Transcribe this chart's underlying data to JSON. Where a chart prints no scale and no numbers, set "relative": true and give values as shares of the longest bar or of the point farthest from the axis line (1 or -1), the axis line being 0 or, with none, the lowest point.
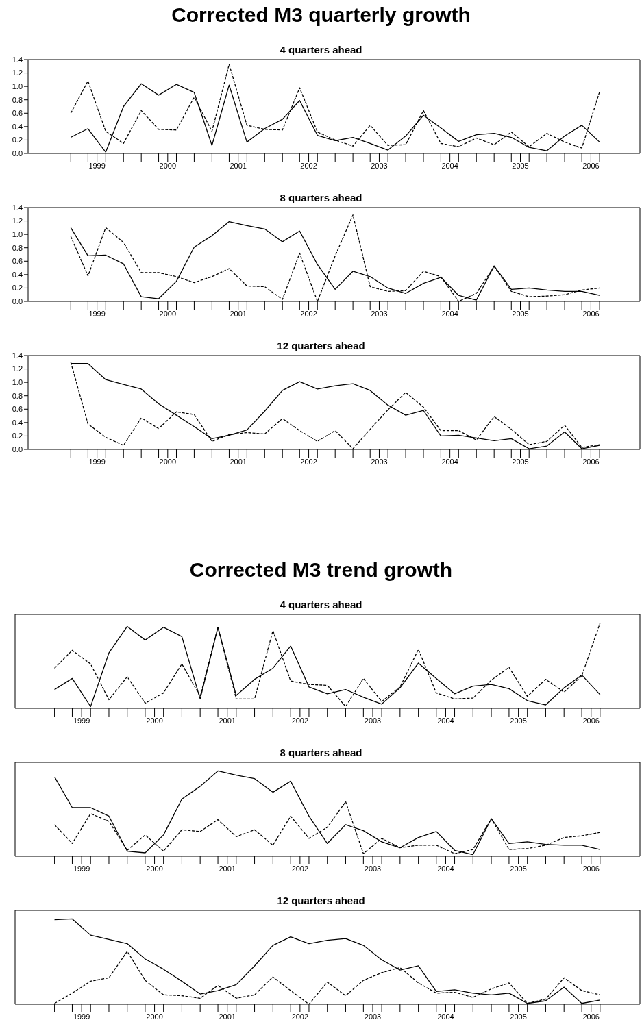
{
  "chart_data": [
    {
      "type": "line",
      "title": "Corrected M3 quarterly growth",
      "subtitle": "4 quarters ahead",
      "x": [
        "1999-02-15",
        "1999-05-15",
        "1999-08-15",
        "1999-11-15",
        "2000-02-15",
        "2000-05-15",
        "2000-08-15",
        "2000-11-15",
        "2001-02-15",
        "2001-05-15",
        "2001-08-15",
        "2001-11-15",
        "2002-02-15",
        "2002-05-15",
        "2002-08-15",
        "2002-11-15",
        "2003-02-15",
        "2003-05-15",
        "2003-08-15",
        "2003-11-15",
        "2004-02-15",
        "2004-05-15",
        "2004-08-15",
        "2004-11-15",
        "2005-02-15",
        "2005-05-15",
        "2005-08-15",
        "2005-11-15",
        "2006-02-15",
        "2006-05-15",
        "2006-08-15"
      ],
      "xlim": [
        "1998-07-09",
        "2007-03-12"
      ],
      "xticks": [
        {
          "value": "1999-02-15",
          "label": null
        },
        {
          "value": "1999-05-15",
          "label": null
        },
        {
          "value": "1999-07-01",
          "label": "1999"
        },
        {
          "value": "1999-08-15",
          "label": null
        },
        {
          "value": "1999-11-15",
          "label": null
        },
        {
          "value": "2000-02-15",
          "label": null
        },
        {
          "value": "2000-05-15",
          "label": null
        },
        {
          "value": "2000-07-01",
          "label": "2000"
        },
        {
          "value": "2000-08-15",
          "label": null
        },
        {
          "value": "2000-11-15",
          "label": null
        },
        {
          "value": "2001-02-15",
          "label": null
        },
        {
          "value": "2001-05-15",
          "label": null
        },
        {
          "value": "2001-07-01",
          "label": "2001"
        },
        {
          "value": "2001-08-15",
          "label": null
        },
        {
          "value": "2001-11-15",
          "label": null
        },
        {
          "value": "2002-02-15",
          "label": null
        },
        {
          "value": "2002-05-15",
          "label": null
        },
        {
          "value": "2002-07-01",
          "label": "2002"
        },
        {
          "value": "2002-08-15",
          "label": null
        },
        {
          "value": "2002-11-15",
          "label": null
        },
        {
          "value": "2003-02-15",
          "label": null
        },
        {
          "value": "2003-05-15",
          "label": null
        },
        {
          "value": "2003-07-01",
          "label": "2003"
        },
        {
          "value": "2003-08-15",
          "label": null
        },
        {
          "value": "2003-11-15",
          "label": null
        },
        {
          "value": "2004-02-15",
          "label": null
        },
        {
          "value": "2004-05-15",
          "label": null
        },
        {
          "value": "2004-07-01",
          "label": "2004"
        },
        {
          "value": "2004-08-15",
          "label": null
        },
        {
          "value": "2004-11-15",
          "label": null
        },
        {
          "value": "2005-02-15",
          "label": null
        },
        {
          "value": "2005-05-15",
          "label": null
        },
        {
          "value": "2005-07-01",
          "label": "2005"
        },
        {
          "value": "2005-08-15",
          "label": null
        },
        {
          "value": "2005-11-15",
          "label": null
        },
        {
          "value": "2006-02-15",
          "label": null
        },
        {
          "value": "2006-05-15",
          "label": null
        },
        {
          "value": "2006-07-01",
          "label": "2006"
        },
        {
          "value": "2006-08-15",
          "label": null
        }
      ],
      "ylim": [
        0,
        1.4
      ],
      "yticks": [
        {
          "value": 0,
          "label": "0.0"
        },
        {
          "value": 0.2,
          "label": "0.2"
        },
        {
          "value": 0.4,
          "label": "0.4"
        },
        {
          "value": 0.6,
          "label": "0.6"
        },
        {
          "value": 0.8,
          "label": "0.8"
        },
        {
          "value": 1,
          "label": "1.0"
        },
        {
          "value": 1.2,
          "label": "1.2"
        },
        {
          "value": 1.4,
          "label": "1.4"
        }
      ],
      "series": [
        {
          "color": "#000000",
          "line_style": "solid",
          "values": [
            0.24,
            0.37,
            0.02,
            0.7,
            1.04,
            0.87,
            1.03,
            0.91,
            0.12,
            1.02,
            0.17,
            0.37,
            0.51,
            0.79,
            0.27,
            0.19,
            0.24,
            0.15,
            0.05,
            0.26,
            0.57,
            0.38,
            0.18,
            0.28,
            0.3,
            0.24,
            0.09,
            0.04,
            0.26,
            0.42,
            0.17
          ]
        },
        {
          "color": "#000000",
          "line_style": "dashed",
          "values": [
            0.6,
            1.08,
            0.33,
            0.15,
            0.64,
            0.36,
            0.35,
            0.84,
            0.33,
            1.33,
            0.42,
            0.36,
            0.35,
            0.98,
            0.32,
            0.2,
            0.11,
            0.42,
            0.12,
            0.13,
            0.64,
            0.15,
            0.1,
            0.23,
            0.13,
            0.32,
            0.1,
            0.3,
            0.17,
            0.08,
            0.92
          ]
        }
      ]
    },
    {
      "type": "line",
      "title": "8 quarters ahead",
      "x": [
        "1999-02-15",
        "1999-05-15",
        "1999-08-15",
        "1999-11-15",
        "2000-02-15",
        "2000-05-15",
        "2000-08-15",
        "2000-11-15",
        "2001-02-15",
        "2001-05-15",
        "2001-08-15",
        "2001-11-15",
        "2002-02-15",
        "2002-05-15",
        "2002-08-15",
        "2002-11-15",
        "2003-02-15",
        "2003-05-15",
        "2003-08-15",
        "2003-11-15",
        "2004-02-15",
        "2004-05-15",
        "2004-08-15",
        "2004-11-15",
        "2005-02-15",
        "2005-05-15",
        "2005-08-15",
        "2005-11-15",
        "2006-02-15",
        "2006-05-15",
        "2006-08-15"
      ],
      "xlim": [
        "1998-07-09",
        "2007-03-12"
      ],
      "xticks": [
        {
          "value": "1999-02-15",
          "label": null
        },
        {
          "value": "1999-05-15",
          "label": null
        },
        {
          "value": "1999-07-01",
          "label": "1999"
        },
        {
          "value": "1999-08-15",
          "label": null
        },
        {
          "value": "1999-11-15",
          "label": null
        },
        {
          "value": "2000-02-15",
          "label": null
        },
        {
          "value": "2000-05-15",
          "label": null
        },
        {
          "value": "2000-07-01",
          "label": "2000"
        },
        {
          "value": "2000-08-15",
          "label": null
        },
        {
          "value": "2000-11-15",
          "label": null
        },
        {
          "value": "2001-02-15",
          "label": null
        },
        {
          "value": "2001-05-15",
          "label": null
        },
        {
          "value": "2001-07-01",
          "label": "2001"
        },
        {
          "value": "2001-08-15",
          "label": null
        },
        {
          "value": "2001-11-15",
          "label": null
        },
        {
          "value": "2002-02-15",
          "label": null
        },
        {
          "value": "2002-05-15",
          "label": null
        },
        {
          "value": "2002-07-01",
          "label": "2002"
        },
        {
          "value": "2002-08-15",
          "label": null
        },
        {
          "value": "2002-11-15",
          "label": null
        },
        {
          "value": "2003-02-15",
          "label": null
        },
        {
          "value": "2003-05-15",
          "label": null
        },
        {
          "value": "2003-07-01",
          "label": "2003"
        },
        {
          "value": "2003-08-15",
          "label": null
        },
        {
          "value": "2003-11-15",
          "label": null
        },
        {
          "value": "2004-02-15",
          "label": null
        },
        {
          "value": "2004-05-15",
          "label": null
        },
        {
          "value": "2004-07-01",
          "label": "2004"
        },
        {
          "value": "2004-08-15",
          "label": null
        },
        {
          "value": "2004-11-15",
          "label": null
        },
        {
          "value": "2005-02-15",
          "label": null
        },
        {
          "value": "2005-05-15",
          "label": null
        },
        {
          "value": "2005-07-01",
          "label": "2005"
        },
        {
          "value": "2005-08-15",
          "label": null
        },
        {
          "value": "2005-11-15",
          "label": null
        },
        {
          "value": "2006-02-15",
          "label": null
        },
        {
          "value": "2006-05-15",
          "label": null
        },
        {
          "value": "2006-07-01",
          "label": "2006"
        },
        {
          "value": "2006-08-15",
          "label": null
        }
      ],
      "ylim": [
        0,
        1.4
      ],
      "yticks": [
        {
          "value": 0,
          "label": "0.0"
        },
        {
          "value": 0.2,
          "label": "0.2"
        },
        {
          "value": 0.4,
          "label": "0.4"
        },
        {
          "value": 0.6,
          "label": "0.6"
        },
        {
          "value": 0.8,
          "label": "0.8"
        },
        {
          "value": 1,
          "label": "1.0"
        },
        {
          "value": 1.2,
          "label": "1.2"
        },
        {
          "value": 1.4,
          "label": "1.4"
        }
      ],
      "series": [
        {
          "color": "#000000",
          "line_style": "solid",
          "values": [
            1.1,
            0.68,
            0.69,
            0.56,
            0.07,
            0.04,
            0.3,
            0.81,
            0.98,
            1.19,
            1.13,
            1.08,
            0.89,
            1.05,
            0.55,
            0.18,
            0.45,
            0.37,
            0.2,
            0.12,
            0.27,
            0.36,
            0.09,
            0.02,
            0.53,
            0.18,
            0.2,
            0.17,
            0.15,
            0.15,
            0.09
          ]
        },
        {
          "color": "#000000",
          "line_style": "dashed",
          "values": [
            0.97,
            0.38,
            1.1,
            0.88,
            0.43,
            0.43,
            0.37,
            0.28,
            0.37,
            0.49,
            0.23,
            0.22,
            0.03,
            0.72,
            0.0,
            0.68,
            1.29,
            0.22,
            0.15,
            0.16,
            0.45,
            0.37,
            0.0,
            0.12,
            0.52,
            0.15,
            0.07,
            0.08,
            0.1,
            0.17,
            0.2
          ]
        }
      ]
    },
    {
      "type": "line",
      "title": "12 quarters ahead",
      "x": [
        "1999-02-15",
        "1999-05-15",
        "1999-08-15",
        "1999-11-15",
        "2000-02-15",
        "2000-05-15",
        "2000-08-15",
        "2000-11-15",
        "2001-02-15",
        "2001-05-15",
        "2001-08-15",
        "2001-11-15",
        "2002-02-15",
        "2002-05-15",
        "2002-08-15",
        "2002-11-15",
        "2003-02-15",
        "2003-05-15",
        "2003-08-15",
        "2003-11-15",
        "2004-02-15",
        "2004-05-15",
        "2004-08-15",
        "2004-11-15",
        "2005-02-15",
        "2005-05-15",
        "2005-08-15",
        "2005-11-15",
        "2006-02-15",
        "2006-05-15",
        "2006-08-15"
      ],
      "xlim": [
        "1998-07-09",
        "2007-03-12"
      ],
      "xticks": [
        {
          "value": "1999-02-15",
          "label": null
        },
        {
          "value": "1999-05-15",
          "label": null
        },
        {
          "value": "1999-07-01",
          "label": "1999"
        },
        {
          "value": "1999-08-15",
          "label": null
        },
        {
          "value": "1999-11-15",
          "label": null
        },
        {
          "value": "2000-02-15",
          "label": null
        },
        {
          "value": "2000-05-15",
          "label": null
        },
        {
          "value": "2000-07-01",
          "label": "2000"
        },
        {
          "value": "2000-08-15",
          "label": null
        },
        {
          "value": "2000-11-15",
          "label": null
        },
        {
          "value": "2001-02-15",
          "label": null
        },
        {
          "value": "2001-05-15",
          "label": null
        },
        {
          "value": "2001-07-01",
          "label": "2001"
        },
        {
          "value": "2001-08-15",
          "label": null
        },
        {
          "value": "2001-11-15",
          "label": null
        },
        {
          "value": "2002-02-15",
          "label": null
        },
        {
          "value": "2002-05-15",
          "label": null
        },
        {
          "value": "2002-07-01",
          "label": "2002"
        },
        {
          "value": "2002-08-15",
          "label": null
        },
        {
          "value": "2002-11-15",
          "label": null
        },
        {
          "value": "2003-02-15",
          "label": null
        },
        {
          "value": "2003-05-15",
          "label": null
        },
        {
          "value": "2003-07-01",
          "label": "2003"
        },
        {
          "value": "2003-08-15",
          "label": null
        },
        {
          "value": "2003-11-15",
          "label": null
        },
        {
          "value": "2004-02-15",
          "label": null
        },
        {
          "value": "2004-05-15",
          "label": null
        },
        {
          "value": "2004-07-01",
          "label": "2004"
        },
        {
          "value": "2004-08-15",
          "label": null
        },
        {
          "value": "2004-11-15",
          "label": null
        },
        {
          "value": "2005-02-15",
          "label": null
        },
        {
          "value": "2005-05-15",
          "label": null
        },
        {
          "value": "2005-07-01",
          "label": "2005"
        },
        {
          "value": "2005-08-15",
          "label": null
        },
        {
          "value": "2005-11-15",
          "label": null
        },
        {
          "value": "2006-02-15",
          "label": null
        },
        {
          "value": "2006-05-15",
          "label": null
        },
        {
          "value": "2006-07-01",
          "label": "2006"
        },
        {
          "value": "2006-08-15",
          "label": null
        }
      ],
      "ylim": [
        0,
        1.4
      ],
      "yticks": [
        {
          "value": 0,
          "label": "0.0"
        },
        {
          "value": 0.2,
          "label": "0.2"
        },
        {
          "value": 0.4,
          "label": "0.4"
        },
        {
          "value": 0.6,
          "label": "0.6"
        },
        {
          "value": 0.8,
          "label": "0.8"
        },
        {
          "value": 1,
          "label": "1.0"
        },
        {
          "value": 1.2,
          "label": "1.2"
        },
        {
          "value": 1.4,
          "label": "1.4"
        }
      ],
      "series": [
        {
          "color": "#000000",
          "line_style": "solid",
          "values": [
            1.28,
            1.28,
            1.04,
            0.97,
            0.9,
            0.68,
            0.51,
            0.34,
            0.16,
            0.21,
            0.29,
            0.57,
            0.88,
            1.01,
            0.9,
            0.95,
            0.98,
            0.88,
            0.66,
            0.51,
            0.58,
            0.2,
            0.21,
            0.17,
            0.13,
            0.16,
            0.01,
            0.05,
            0.26,
            0.01,
            0.06
          ]
        },
        {
          "color": "#000000",
          "line_style": "dashed",
          "values": [
            1.3,
            0.38,
            0.18,
            0.06,
            0.47,
            0.31,
            0.56,
            0.52,
            0.12,
            0.22,
            0.25,
            0.23,
            0.46,
            0.28,
            0.12,
            0.28,
            0.01,
            0.3,
            0.59,
            0.85,
            0.63,
            0.28,
            0.28,
            0.14,
            0.49,
            0.3,
            0.07,
            0.12,
            0.36,
            0.03,
            0.07
          ]
        }
      ]
    },
    {
      "type": "line",
      "title": "Corrected M3 trend growth",
      "subtitle": "4 quarters ahead",
      "relative": true,
      "x": [
        "1999-02-15",
        "1999-05-15",
        "1999-08-15",
        "1999-11-15",
        "2000-02-15",
        "2000-05-15",
        "2000-08-15",
        "2000-11-15",
        "2001-02-15",
        "2001-05-15",
        "2001-08-15",
        "2001-11-15",
        "2002-02-15",
        "2002-05-15",
        "2002-08-15",
        "2002-11-15",
        "2003-02-15",
        "2003-05-15",
        "2003-08-15",
        "2003-11-15",
        "2004-02-15",
        "2004-05-15",
        "2004-08-15",
        "2004-11-15",
        "2005-02-15",
        "2005-05-15",
        "2005-08-15",
        "2005-11-15",
        "2006-02-15",
        "2006-05-15",
        "2006-08-15"
      ],
      "xlim": [
        "1998-08-01",
        "2007-03-03"
      ],
      "xticks": [
        {
          "value": "1999-02-15",
          "label": null
        },
        {
          "value": "1999-05-15",
          "label": null
        },
        {
          "value": "1999-07-01",
          "label": "1999"
        },
        {
          "value": "1999-08-15",
          "label": null
        },
        {
          "value": "1999-11-15",
          "label": null
        },
        {
          "value": "2000-02-15",
          "label": null
        },
        {
          "value": "2000-05-15",
          "label": null
        },
        {
          "value": "2000-07-01",
          "label": "2000"
        },
        {
          "value": "2000-08-15",
          "label": null
        },
        {
          "value": "2000-11-15",
          "label": null
        },
        {
          "value": "2001-02-15",
          "label": null
        },
        {
          "value": "2001-05-15",
          "label": null
        },
        {
          "value": "2001-07-01",
          "label": "2001"
        },
        {
          "value": "2001-08-15",
          "label": null
        },
        {
          "value": "2001-11-15",
          "label": null
        },
        {
          "value": "2002-02-15",
          "label": null
        },
        {
          "value": "2002-05-15",
          "label": null
        },
        {
          "value": "2002-07-01",
          "label": "2002"
        },
        {
          "value": "2002-08-15",
          "label": null
        },
        {
          "value": "2002-11-15",
          "label": null
        },
        {
          "value": "2003-02-15",
          "label": null
        },
        {
          "value": "2003-05-15",
          "label": null
        },
        {
          "value": "2003-07-01",
          "label": "2003"
        },
        {
          "value": "2003-08-15",
          "label": null
        },
        {
          "value": "2003-11-15",
          "label": null
        },
        {
          "value": "2004-02-15",
          "label": null
        },
        {
          "value": "2004-05-15",
          "label": null
        },
        {
          "value": "2004-07-01",
          "label": "2004"
        },
        {
          "value": "2004-08-15",
          "label": null
        },
        {
          "value": "2004-11-15",
          "label": null
        },
        {
          "value": "2005-02-15",
          "label": null
        },
        {
          "value": "2005-05-15",
          "label": null
        },
        {
          "value": "2005-07-01",
          "label": "2005"
        },
        {
          "value": "2005-08-15",
          "label": null
        },
        {
          "value": "2005-11-15",
          "label": null
        },
        {
          "value": "2006-02-15",
          "label": null
        },
        {
          "value": "2006-05-15",
          "label": null
        },
        {
          "value": "2006-07-01",
          "label": "2006"
        },
        {
          "value": "2006-08-15",
          "label": null
        }
      ],
      "series": [
        {
          "color": "#000000",
          "line_style": "solid",
          "values": [
            0.22,
            0.35,
            0.02,
            0.65,
            0.96,
            0.8,
            0.95,
            0.84,
            0.11,
            0.95,
            0.15,
            0.34,
            0.47,
            0.73,
            0.25,
            0.17,
            0.22,
            0.13,
            0.05,
            0.24,
            0.53,
            0.35,
            0.17,
            0.26,
            0.28,
            0.23,
            0.09,
            0.04,
            0.24,
            0.39,
            0.16
          ]
        },
        {
          "color": "#000000",
          "line_style": "dashed",
          "values": [
            0.47,
            0.68,
            0.52,
            0.1,
            0.37,
            0.06,
            0.18,
            0.52,
            0.14,
            0.95,
            0.11,
            0.11,
            0.91,
            0.32,
            0.28,
            0.27,
            0.02,
            0.35,
            0.08,
            0.25,
            0.69,
            0.18,
            0.11,
            0.12,
            0.33,
            0.48,
            0.14,
            0.34,
            0.19,
            0.38,
            1
          ]
        }
      ]
    },
    {
      "type": "line",
      "title": "8 quarters ahead",
      "relative": true,
      "x": [
        "1999-02-15",
        "1999-05-15",
        "1999-08-15",
        "1999-11-15",
        "2000-02-15",
        "2000-05-15",
        "2000-08-15",
        "2000-11-15",
        "2001-02-15",
        "2001-05-15",
        "2001-08-15",
        "2001-11-15",
        "2002-02-15",
        "2002-05-15",
        "2002-08-15",
        "2002-11-15",
        "2003-02-15",
        "2003-05-15",
        "2003-08-15",
        "2003-11-15",
        "2004-02-15",
        "2004-05-15",
        "2004-08-15",
        "2004-11-15",
        "2005-02-15",
        "2005-05-15",
        "2005-08-15",
        "2005-11-15",
        "2006-02-15",
        "2006-05-15",
        "2006-08-15"
      ],
      "xlim": [
        "1998-08-01",
        "2007-03-03"
      ],
      "xticks": [
        {
          "value": "1999-02-15",
          "label": null
        },
        {
          "value": "1999-05-15",
          "label": null
        },
        {
          "value": "1999-07-01",
          "label": "1999"
        },
        {
          "value": "1999-08-15",
          "label": null
        },
        {
          "value": "1999-11-15",
          "label": null
        },
        {
          "value": "2000-02-15",
          "label": null
        },
        {
          "value": "2000-05-15",
          "label": null
        },
        {
          "value": "2000-07-01",
          "label": "2000"
        },
        {
          "value": "2000-08-15",
          "label": null
        },
        {
          "value": "2000-11-15",
          "label": null
        },
        {
          "value": "2001-02-15",
          "label": null
        },
        {
          "value": "2001-05-15",
          "label": null
        },
        {
          "value": "2001-07-01",
          "label": "2001"
        },
        {
          "value": "2001-08-15",
          "label": null
        },
        {
          "value": "2001-11-15",
          "label": null
        },
        {
          "value": "2002-02-15",
          "label": null
        },
        {
          "value": "2002-05-15",
          "label": null
        },
        {
          "value": "2002-07-01",
          "label": "2002"
        },
        {
          "value": "2002-08-15",
          "label": null
        },
        {
          "value": "2002-11-15",
          "label": null
        },
        {
          "value": "2003-02-15",
          "label": null
        },
        {
          "value": "2003-05-15",
          "label": null
        },
        {
          "value": "2003-07-01",
          "label": "2003"
        },
        {
          "value": "2003-08-15",
          "label": null
        },
        {
          "value": "2003-11-15",
          "label": null
        },
        {
          "value": "2004-02-15",
          "label": null
        },
        {
          "value": "2004-05-15",
          "label": null
        },
        {
          "value": "2004-07-01",
          "label": "2004"
        },
        {
          "value": "2004-08-15",
          "label": null
        },
        {
          "value": "2004-11-15",
          "label": null
        },
        {
          "value": "2005-02-15",
          "label": null
        },
        {
          "value": "2005-05-15",
          "label": null
        },
        {
          "value": "2005-07-01",
          "label": "2005"
        },
        {
          "value": "2005-08-15",
          "label": null
        },
        {
          "value": "2005-11-15",
          "label": null
        },
        {
          "value": "2006-02-15",
          "label": null
        },
        {
          "value": "2006-05-15",
          "label": null
        },
        {
          "value": "2006-07-01",
          "label": "2006"
        },
        {
          "value": "2006-08-15",
          "label": null
        }
      ],
      "series": [
        {
          "color": "#000000",
          "line_style": "solid",
          "values": [
            0.93,
            0.57,
            0.57,
            0.47,
            0.06,
            0.04,
            0.25,
            0.67,
            0.82,
            1,
            0.95,
            0.91,
            0.75,
            0.88,
            0.47,
            0.15,
            0.37,
            0.3,
            0.17,
            0.1,
            0.22,
            0.29,
            0.07,
            0.02,
            0.44,
            0.15,
            0.17,
            0.14,
            0.13,
            0.13,
            0.08
          ]
        },
        {
          "color": "#000000",
          "line_style": "dashed",
          "values": [
            0.37,
            0.15,
            0.5,
            0.41,
            0.07,
            0.25,
            0.06,
            0.31,
            0.29,
            0.43,
            0.23,
            0.31,
            0.13,
            0.47,
            0.21,
            0.34,
            0.64,
            0.03,
            0.21,
            0.1,
            0.13,
            0.13,
            0.03,
            0.08,
            0.44,
            0.08,
            0.09,
            0.13,
            0.22,
            0.24,
            0.28
          ]
        }
      ]
    },
    {
      "type": "line",
      "title": "12 quarters ahead",
      "relative": true,
      "x": [
        "1999-02-15",
        "1999-05-15",
        "1999-08-15",
        "1999-11-15",
        "2000-02-15",
        "2000-05-15",
        "2000-08-15",
        "2000-11-15",
        "2001-02-15",
        "2001-05-15",
        "2001-08-15",
        "2001-11-15",
        "2002-02-15",
        "2002-05-15",
        "2002-08-15",
        "2002-11-15",
        "2003-02-15",
        "2003-05-15",
        "2003-08-15",
        "2003-11-15",
        "2004-02-15",
        "2004-05-15",
        "2004-08-15",
        "2004-11-15",
        "2005-02-15",
        "2005-05-15",
        "2005-08-15",
        "2005-11-15",
        "2006-02-15",
        "2006-05-15",
        "2006-08-15"
      ],
      "xlim": [
        "1998-08-01",
        "2007-03-03"
      ],
      "xticks": [
        {
          "value": "1999-02-15",
          "label": null
        },
        {
          "value": "1999-05-15",
          "label": null
        },
        {
          "value": "1999-07-01",
          "label": "1999"
        },
        {
          "value": "1999-08-15",
          "label": null
        },
        {
          "value": "1999-11-15",
          "label": null
        },
        {
          "value": "2000-02-15",
          "label": null
        },
        {
          "value": "2000-05-15",
          "label": null
        },
        {
          "value": "2000-07-01",
          "label": "2000"
        },
        {
          "value": "2000-08-15",
          "label": null
        },
        {
          "value": "2000-11-15",
          "label": null
        },
        {
          "value": "2001-02-15",
          "label": null
        },
        {
          "value": "2001-05-15",
          "label": null
        },
        {
          "value": "2001-07-01",
          "label": "2001"
        },
        {
          "value": "2001-08-15",
          "label": null
        },
        {
          "value": "2001-11-15",
          "label": null
        },
        {
          "value": "2002-02-15",
          "label": null
        },
        {
          "value": "2002-05-15",
          "label": null
        },
        {
          "value": "2002-07-01",
          "label": "2002"
        },
        {
          "value": "2002-08-15",
          "label": null
        },
        {
          "value": "2002-11-15",
          "label": null
        },
        {
          "value": "2003-02-15",
          "label": null
        },
        {
          "value": "2003-05-15",
          "label": null
        },
        {
          "value": "2003-07-01",
          "label": "2003"
        },
        {
          "value": "2003-08-15",
          "label": null
        },
        {
          "value": "2003-11-15",
          "label": null
        },
        {
          "value": "2004-02-15",
          "label": null
        },
        {
          "value": "2004-05-15",
          "label": null
        },
        {
          "value": "2004-07-01",
          "label": "2004"
        },
        {
          "value": "2004-08-15",
          "label": null
        },
        {
          "value": "2004-11-15",
          "label": null
        },
        {
          "value": "2005-02-15",
          "label": null
        },
        {
          "value": "2005-05-15",
          "label": null
        },
        {
          "value": "2005-07-01",
          "label": "2005"
        },
        {
          "value": "2005-08-15",
          "label": null
        },
        {
          "value": "2005-11-15",
          "label": null
        },
        {
          "value": "2006-02-15",
          "label": null
        },
        {
          "value": "2006-05-15",
          "label": null
        },
        {
          "value": "2006-07-01",
          "label": "2006"
        },
        {
          "value": "2006-08-15",
          "label": null
        }
      ],
      "series": [
        {
          "color": "#000000",
          "line_style": "solid",
          "values": [
            0.99,
            1,
            0.81,
            0.76,
            0.71,
            0.53,
            0.41,
            0.27,
            0.12,
            0.16,
            0.23,
            0.45,
            0.69,
            0.79,
            0.71,
            0.75,
            0.77,
            0.69,
            0.52,
            0.4,
            0.45,
            0.15,
            0.17,
            0.13,
            0.11,
            0.13,
            0.01,
            0.04,
            0.2,
            0.01,
            0.05
          ]
        },
        {
          "color": "#000000",
          "line_style": "dashed",
          "values": [
            0.01,
            0.13,
            0.27,
            0.31,
            0.62,
            0.28,
            0.11,
            0.1,
            0.07,
            0.22,
            0.07,
            0.11,
            0.32,
            0.16,
            0,
            0.26,
            0.1,
            0.28,
            0.37,
            0.43,
            0.25,
            0.13,
            0.14,
            0.08,
            0.18,
            0.25,
            0.01,
            0.06,
            0.31,
            0.16,
            0.11
          ]
        }
      ]
    }
  ]
}
